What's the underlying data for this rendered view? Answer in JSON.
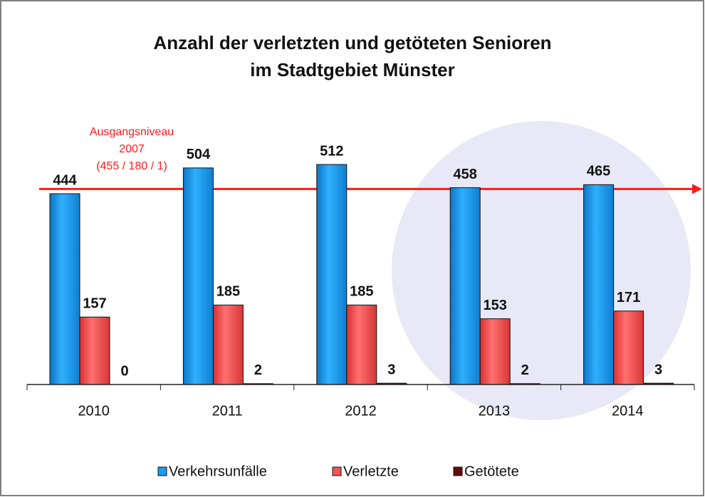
{
  "chart_data": {
    "type": "bar",
    "title": [
      "Anzahl der verletzten und getöteten Senioren",
      "im Stadtgebiet Münster"
    ],
    "categories": [
      "2010",
      "2011",
      "2012",
      "2013",
      "2014"
    ],
    "series": [
      {
        "name": "Verkehrsunfälle",
        "color": "#1a9cf0",
        "values": [
          444,
          504,
          512,
          458,
          465
        ]
      },
      {
        "name": "Verletzte",
        "color": "#f25656",
        "values": [
          157,
          185,
          185,
          153,
          171
        ]
      },
      {
        "name": "Getötete",
        "color": "#6a0a0a",
        "values": [
          0,
          2,
          3,
          2,
          3
        ]
      }
    ],
    "reference_line": {
      "value": 455,
      "color": "#ff1a1a",
      "label": [
        "Ausgangsniveau",
        "2007",
        "(455 / 180 / 1)"
      ]
    }
  }
}
